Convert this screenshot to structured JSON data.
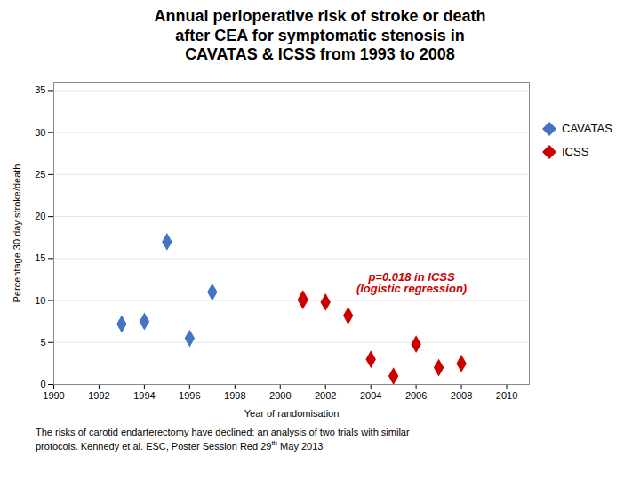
{
  "chart_data": {
    "type": "scatter",
    "title": "Annual perioperative risk of stroke or death\nafter CEA for symptomatic stenosis in\nCAVATAS & ICSS from 1993 to 2008",
    "xlabel": "Year of randomisation",
    "ylabel": "Percentage 30 day stroke/death",
    "series": [
      {
        "name": "CAVATAS",
        "color": "#4472C4",
        "marker": "diamond",
        "x": [
          1993,
          1994,
          1995,
          1996,
          1997
        ],
        "values": [
          7.2,
          7.5,
          17.0,
          5.5,
          11.0
        ]
      },
      {
        "name": "ICSS",
        "color": "#CC0000",
        "marker": "diamond",
        "x": [
          2001,
          2001,
          2002,
          2003,
          2004,
          2005,
          2006,
          2007,
          2008
        ],
        "values": [
          10.0,
          10.2,
          9.8,
          8.2,
          3.0,
          1.0,
          4.8,
          2.0,
          2.5
        ]
      }
    ],
    "xlim": [
      1990,
      2011
    ],
    "ylim": [
      0,
      36
    ],
    "xticks": [
      1990,
      1992,
      1994,
      1996,
      1998,
      2000,
      2002,
      2004,
      2006,
      2008,
      2010
    ],
    "yticks": [
      0,
      5,
      10,
      15,
      20,
      25,
      30,
      35
    ],
    "grid": "y",
    "legend": "right",
    "annotations": [
      {
        "text": "p=0.018 in ICSS\n(logistic regression)",
        "x": 2005.8,
        "y": 11.0,
        "color": "#CC0000"
      }
    ],
    "footnote": [
      [
        {
          "text": "The risks of carotid endarterectomy have declined: an analysis of two trials with similar"
        }
      ],
      [
        {
          "text": "protocols. Kennedy et al. ESC, Poster Session Red 29"
        },
        {
          "text": "th",
          "superscript": true
        },
        {
          "text": " May 2013"
        }
      ]
    ]
  }
}
